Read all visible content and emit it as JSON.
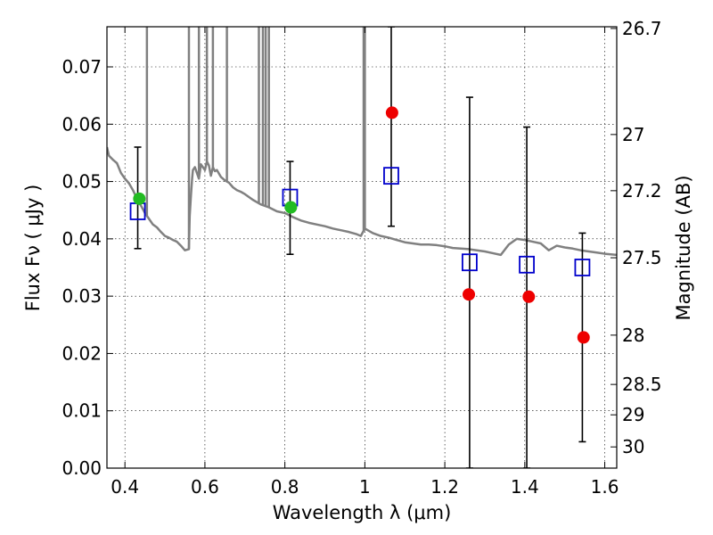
{
  "chart_data": {
    "type": "scatter",
    "xlabel": "Wavelength  λ (μm)",
    "ylabel": "Flux  Fν  ( μJy )",
    "y2label": "Magnitude (AB)",
    "xlim": [
      0.355,
      1.63
    ],
    "ylim": [
      0.0,
      0.077
    ],
    "xticks": [
      0.4,
      0.6,
      0.8,
      1.0,
      1.2,
      1.4,
      1.6
    ],
    "xtick_labels": [
      "0.4",
      "0.6",
      "0.8",
      "1",
      "1.2",
      "1.4",
      "1.6"
    ],
    "yticks": [
      0.0,
      0.01,
      0.02,
      0.03,
      0.04,
      0.05,
      0.06,
      0.07
    ],
    "ytick_labels": [
      "0.00",
      "0.01",
      "0.02",
      "0.03",
      "0.04",
      "0.05",
      "0.06",
      "0.07"
    ],
    "y2ticks": [
      {
        "label": "26.7",
        "flux": 0.0767
      },
      {
        "label": "27",
        "flux": 0.0582
      },
      {
        "label": "27.2",
        "flux": 0.0484
      },
      {
        "label": "27.5",
        "flux": 0.0367
      },
      {
        "label": "28",
        "flux": 0.0232
      },
      {
        "label": "28.5",
        "flux": 0.0146
      },
      {
        "label": "29",
        "flux": 0.0093
      },
      {
        "label": "30",
        "flux": 0.0037
      }
    ],
    "grid": true,
    "series": [
      {
        "kind": "line",
        "color": "#808080",
        "x": [
          0.355,
          0.36,
          0.37,
          0.38,
          0.39,
          0.4,
          0.41,
          0.42,
          0.43,
          0.44,
          0.45,
          0.46,
          0.47,
          0.48,
          0.49,
          0.5,
          0.51,
          0.52,
          0.53,
          0.54,
          0.55,
          0.56,
          0.562,
          0.565,
          0.568,
          0.57,
          0.575,
          0.58,
          0.585,
          0.59,
          0.595,
          0.6,
          0.605,
          0.61,
          0.615,
          0.62,
          0.625,
          0.63,
          0.64,
          0.65,
          0.66,
          0.67,
          0.68,
          0.69,
          0.7,
          0.72,
          0.74,
          0.76,
          0.78,
          0.8,
          0.82,
          0.84,
          0.86,
          0.88,
          0.9,
          0.92,
          0.94,
          0.96,
          0.98,
          0.99,
          1.0,
          1.02,
          1.04,
          1.06,
          1.08,
          1.1,
          1.12,
          1.14,
          1.16,
          1.18,
          1.2,
          1.22,
          1.24,
          1.26,
          1.28,
          1.3,
          1.32,
          1.34,
          1.36,
          1.38,
          1.4,
          1.42,
          1.44,
          1.46,
          1.48,
          1.5,
          1.52,
          1.54,
          1.56,
          1.58,
          1.6,
          1.63
        ],
        "y": [
          0.056,
          0.0545,
          0.0538,
          0.0532,
          0.0515,
          0.0505,
          0.0497,
          0.0485,
          0.047,
          0.0458,
          0.0445,
          0.0435,
          0.0425,
          0.042,
          0.0412,
          0.0405,
          0.0402,
          0.0398,
          0.0395,
          0.0388,
          0.038,
          0.0382,
          0.044,
          0.0475,
          0.0505,
          0.052,
          0.0525,
          0.0515,
          0.0505,
          0.053,
          0.0525,
          0.052,
          0.0535,
          0.0528,
          0.051,
          0.0525,
          0.0518,
          0.052,
          0.0508,
          0.0502,
          0.0498,
          0.049,
          0.0485,
          0.0482,
          0.0478,
          0.0468,
          0.046,
          0.0455,
          0.0448,
          0.0445,
          0.0438,
          0.0432,
          0.0428,
          0.0425,
          0.0422,
          0.0418,
          0.0415,
          0.0412,
          0.0408,
          0.0405,
          0.0418,
          0.041,
          0.0405,
          0.0402,
          0.0398,
          0.0394,
          0.0392,
          0.039,
          0.039,
          0.0389,
          0.0387,
          0.0384,
          0.0383,
          0.0382,
          0.038,
          0.0378,
          0.0375,
          0.0372,
          0.039,
          0.04,
          0.0398,
          0.0395,
          0.0392,
          0.038,
          0.0388,
          0.0385,
          0.0383,
          0.038,
          0.0378,
          0.0376,
          0.0374,
          0.0372
        ]
      },
      {
        "kind": "spikes",
        "color": "#808080",
        "x": [
          0.455,
          0.56,
          0.585,
          0.605,
          0.62,
          0.655,
          0.735,
          0.745,
          0.752,
          0.76,
          0.997,
          1.0
        ]
      },
      {
        "kind": "squares",
        "color": "#0000cc",
        "x": [
          0.432,
          0.813,
          1.066,
          1.262,
          1.405,
          1.544
        ],
        "y": [
          0.0448,
          0.0472,
          0.051,
          0.0359,
          0.0355,
          0.035
        ]
      },
      {
        "kind": "points",
        "color": "#22bb22",
        "x": [
          0.436,
          0.815
        ],
        "y": [
          0.047,
          0.0455
        ]
      },
      {
        "kind": "points",
        "color": "#ee0000",
        "x": [
          1.068,
          1.26,
          1.41,
          1.547
        ],
        "y": [
          0.062,
          0.0303,
          0.0299,
          0.0228
        ]
      },
      {
        "kind": "errorbars",
        "color": "#000000",
        "x": [
          0.432,
          0.813,
          1.066,
          1.262,
          1.405,
          1.544
        ],
        "ylow": [
          0.0383,
          0.0373,
          0.0422,
          0.0,
          0.0,
          0.0046
        ],
        "yhigh": [
          0.056,
          0.0535,
          0.077,
          0.0647,
          0.0595,
          0.041
        ]
      }
    ]
  }
}
